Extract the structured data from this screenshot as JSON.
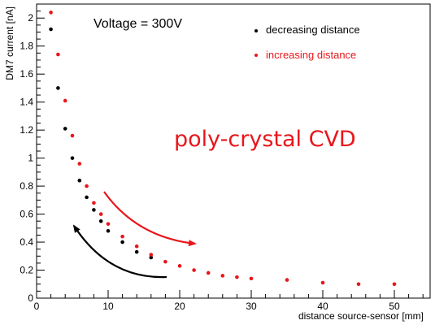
{
  "colors": {
    "decreasing": "#000000",
    "increasing": "#e8161b",
    "axis": "#000000",
    "background": "#ffffff"
  },
  "chart_data": {
    "type": "scatter",
    "title": "",
    "xlabel": "distance source-sensor [mm]",
    "ylabel": "DM7 current [nA]",
    "xlim": [
      0,
      55
    ],
    "ylim": [
      0,
      2.1
    ],
    "grid": false,
    "legend_position": "top-right",
    "xticks": [
      "0",
      "10",
      "20",
      "30",
      "40",
      "50"
    ],
    "yticks": [
      "0",
      "0.2",
      "0.4",
      "0.6",
      "0.8",
      "1",
      "1.2",
      "1.4",
      "1.6",
      "1.8",
      "2"
    ],
    "annotations": {
      "voltage": "Voltage = 300V",
      "material": "poly-crystal CVD"
    },
    "series": [
      {
        "name": "decreasing distance",
        "color": "#000000",
        "x": [
          2,
          3,
          4,
          5,
          6,
          7,
          8,
          9,
          10,
          12,
          14,
          16
        ],
        "y": [
          1.92,
          1.5,
          1.21,
          1.0,
          0.84,
          0.72,
          0.63,
          0.55,
          0.48,
          0.4,
          0.33,
          0.29
        ]
      },
      {
        "name": "increasing distance",
        "color": "#e8161b",
        "x": [
          2,
          3,
          4,
          5,
          6,
          7,
          8,
          9,
          10,
          12,
          14,
          16,
          18,
          20,
          22,
          24,
          26,
          28,
          30,
          35,
          40,
          45,
          50
        ],
        "y": [
          2.04,
          1.74,
          1.41,
          1.16,
          0.96,
          0.8,
          0.68,
          0.6,
          0.53,
          0.44,
          0.37,
          0.31,
          0.26,
          0.23,
          0.2,
          0.18,
          0.16,
          0.15,
          0.14,
          0.13,
          0.11,
          0.1,
          0.1
        ]
      }
    ]
  }
}
